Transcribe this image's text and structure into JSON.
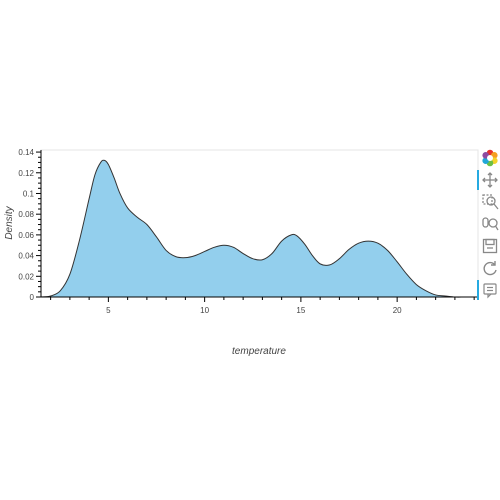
{
  "chart_data": {
    "type": "area",
    "title": "",
    "xlabel": "temperature",
    "ylabel": "Density",
    "xlim": [
      1.5,
      24.2
    ],
    "ylim": [
      0,
      0.142
    ],
    "x_ticks": [
      5,
      10,
      15,
      20
    ],
    "y_ticks": [
      0,
      0.02,
      0.04,
      0.06,
      0.08,
      0.1,
      0.12,
      0.14
    ],
    "y_tick_labels": [
      "0",
      "0.02",
      "0.04",
      "0.06",
      "0.08",
      "0.1",
      "0.12",
      "0.14"
    ],
    "fill_color": "#93cfed",
    "line_color": "#333333",
    "grid": false,
    "series": [
      {
        "x": [
          1.5,
          2.0,
          2.5,
          3.0,
          3.5,
          4.0,
          4.3,
          4.6,
          4.8,
          5.0,
          5.3,
          5.6,
          6.0,
          6.5,
          7.0,
          7.5,
          8.0,
          8.5,
          9.0,
          9.5,
          10.0,
          10.5,
          11.0,
          11.5,
          12.0,
          12.5,
          13.0,
          13.5,
          14.0,
          14.5,
          14.8,
          15.2,
          15.6,
          16.0,
          16.5,
          17.0,
          17.5,
          18.0,
          18.5,
          19.0,
          19.5,
          20.0,
          20.5,
          21.0,
          21.5,
          22.0,
          22.5,
          23.0,
          23.5,
          24.0
        ],
        "y": [
          0.0,
          0.001,
          0.006,
          0.022,
          0.055,
          0.095,
          0.118,
          0.13,
          0.132,
          0.128,
          0.115,
          0.1,
          0.086,
          0.077,
          0.07,
          0.058,
          0.045,
          0.039,
          0.038,
          0.04,
          0.044,
          0.048,
          0.05,
          0.048,
          0.042,
          0.037,
          0.036,
          0.042,
          0.054,
          0.06,
          0.059,
          0.051,
          0.04,
          0.032,
          0.031,
          0.037,
          0.046,
          0.052,
          0.054,
          0.052,
          0.045,
          0.034,
          0.022,
          0.012,
          0.006,
          0.002,
          0.001,
          0.0,
          0.0,
          0.0
        ]
      }
    ]
  },
  "toolbar": {
    "logo": "bokeh-logo-icon",
    "tools": [
      "pan-icon",
      "box-zoom-icon",
      "wheel-zoom-icon",
      "save-icon",
      "reset-icon",
      "hover-icon"
    ],
    "accent": "#26aae1"
  }
}
